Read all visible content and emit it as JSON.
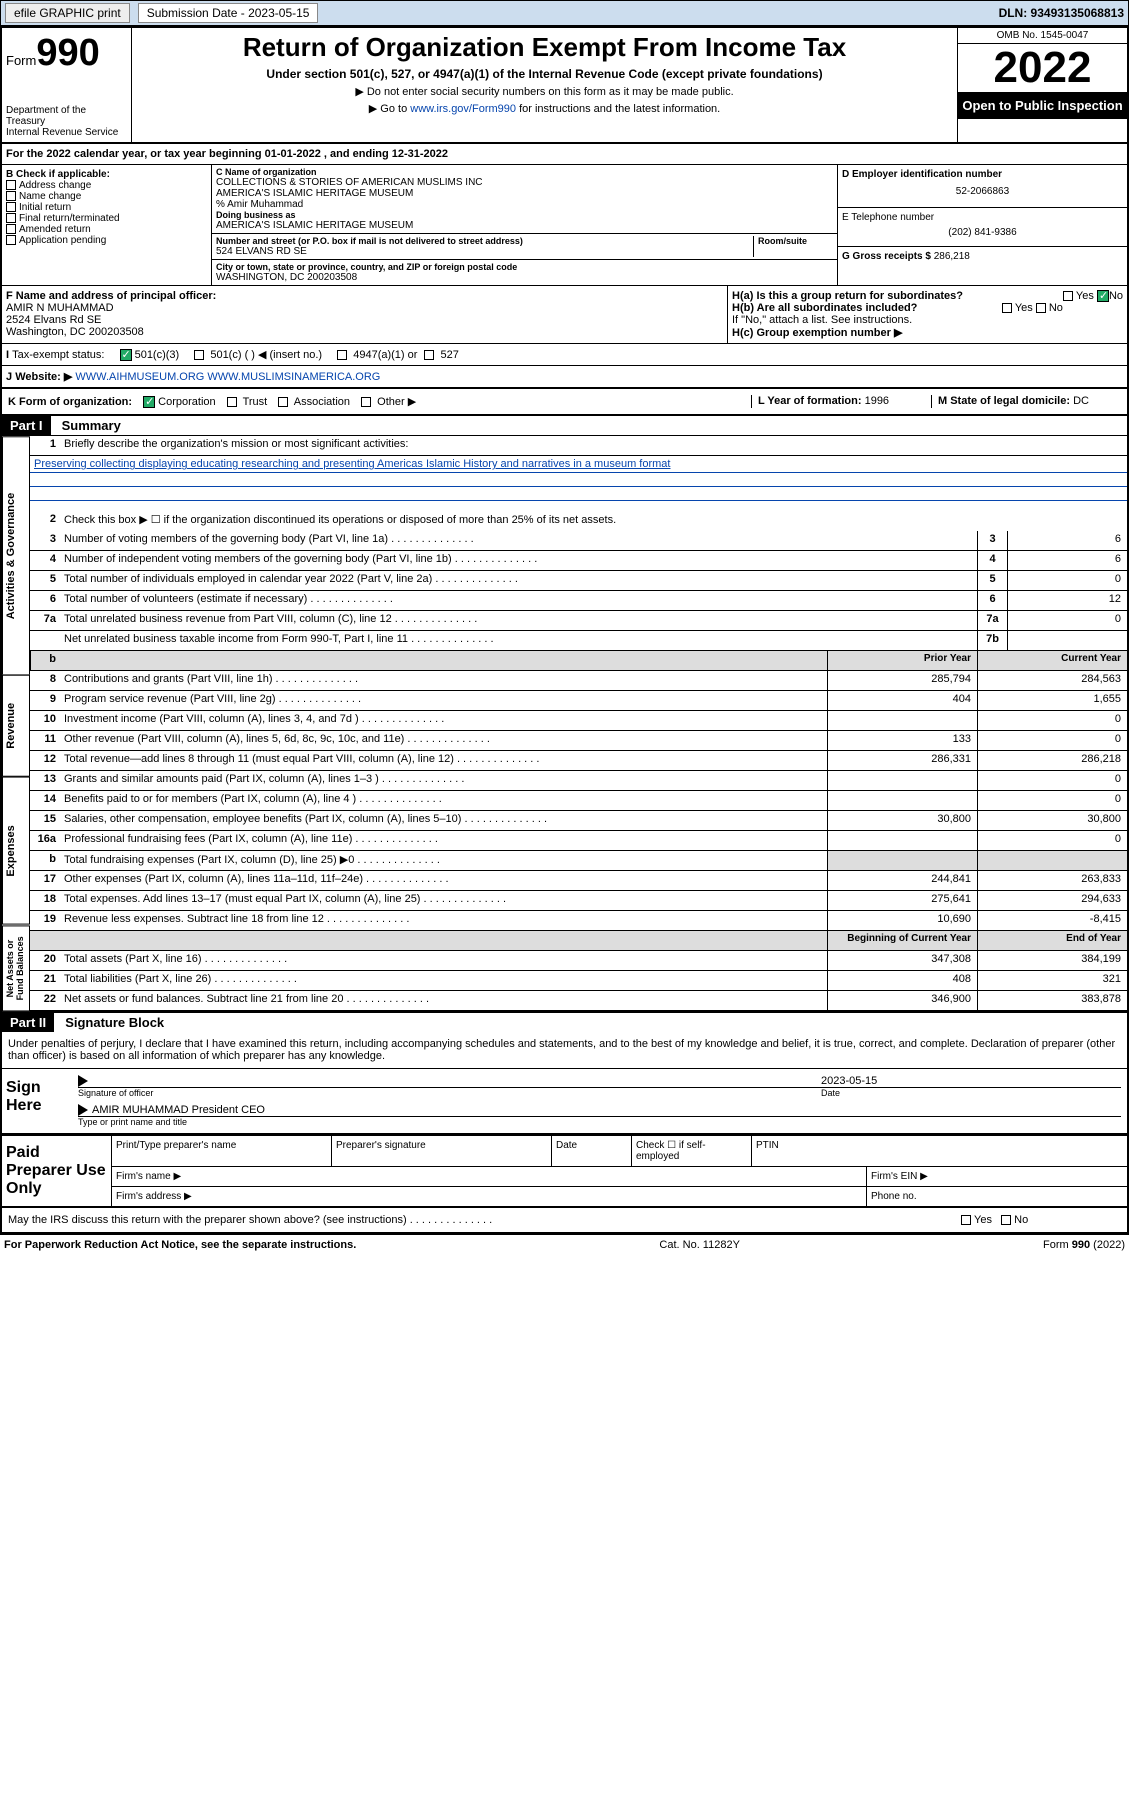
{
  "topbar": {
    "efile": "efile GRAPHIC print",
    "submission_label": "Submission Date - 2023-05-15",
    "dln": "DLN: 93493135068813"
  },
  "header": {
    "form_label": "Form",
    "form_num": "990",
    "title": "Return of Organization Exempt From Income Tax",
    "subtitle": "Under section 501(c), 527, or 4947(a)(1) of the Internal Revenue Code (except private foundations)",
    "note1": "▶ Do not enter social security numbers on this form as it may be made public.",
    "note2_pre": "▶ Go to ",
    "note2_link": "www.irs.gov/Form990",
    "note2_post": " for instructions and the latest information.",
    "dept": "Department of the Treasury\nInternal Revenue Service",
    "omb": "OMB No. 1545-0047",
    "year": "2022",
    "inspect": "Open to Public Inspection"
  },
  "line_a": "For the 2022 calendar year, or tax year beginning 01-01-2022   , and ending 12-31-2022",
  "section_b": {
    "title": "B Check if applicable:",
    "items": [
      "Address change",
      "Name change",
      "Initial return",
      "Final return/terminated",
      "Amended return",
      "Application pending"
    ]
  },
  "section_c": {
    "name_lbl": "C Name of organization",
    "name1": "COLLECTIONS & STORIES OF AMERICAN MUSLIMS INC",
    "name2": "AMERICA'S ISLAMIC HERITAGE MUSEUM",
    "care_of": "% Amir Muhammad",
    "dba_lbl": "Doing business as",
    "dba": "AMERICA'S ISLAMIC HERITAGE MUSEUM",
    "addr_lbl": "Number and street (or P.O. box if mail is not delivered to street address)",
    "room_lbl": "Room/suite",
    "addr": "524 ELVANS RD SE",
    "city_lbl": "City or town, state or province, country, and ZIP or foreign postal code",
    "city": "WASHINGTON, DC  200203508"
  },
  "section_d": {
    "lbl": "D Employer identification number",
    "val": "52-2066863"
  },
  "section_e": {
    "lbl": "E Telephone number",
    "val": "(202) 841-9386"
  },
  "section_g": {
    "lbl": "G Gross receipts $",
    "val": "286,218"
  },
  "section_f": {
    "lbl": "F  Name and address of principal officer:",
    "name": "AMIR N MUHAMMAD",
    "addr1": "2524 Elvans Rd SE",
    "addr2": "Washington, DC  200203508"
  },
  "section_h": {
    "ha": "H(a)  Is this a group return for subordinates?",
    "hb": "H(b)  Are all subordinates included?",
    "hb_note": "If \"No,\" attach a list. See instructions.",
    "hc": "H(c)  Group exemption number ▶",
    "yes": "Yes",
    "no": "No"
  },
  "line_i": {
    "lbl": "Tax-exempt status:",
    "opts": [
      "501(c)(3)",
      "501(c) (  ) ◀ (insert no.)",
      "4947(a)(1) or",
      "527"
    ]
  },
  "line_j": {
    "lbl": "Website: ▶",
    "val": "WWW.AIHMUSEUM.ORG WWW.MUSLIMSINAMERICA.ORG"
  },
  "line_k": {
    "lbl": "K Form of organization:",
    "opts": [
      "Corporation",
      "Trust",
      "Association",
      "Other ▶"
    ],
    "l_lbl": "L Year of formation:",
    "l_val": "1996",
    "m_lbl": "M State of legal domicile:",
    "m_val": "DC"
  },
  "part1": {
    "hdr": "Part I",
    "title": "Summary",
    "tab_ag": "Activities & Governance",
    "tab_rev": "Revenue",
    "tab_exp": "Expenses",
    "tab_na": "Net Assets or Fund Balances",
    "line1_lbl": "Briefly describe the organization's mission or most significant activities:",
    "mission": "Preserving collecting displaying educating researching and presenting Americas Islamic History and narratives in a museum format",
    "line2": "Check this box ▶ ☐  if the organization discontinued its operations or disposed of more than 25% of its net assets.",
    "rows_ag": [
      {
        "n": "3",
        "t": "Number of voting members of the governing body (Part VI, line 1a)",
        "box": "3",
        "val": "6"
      },
      {
        "n": "4",
        "t": "Number of independent voting members of the governing body (Part VI, line 1b)",
        "box": "4",
        "val": "6"
      },
      {
        "n": "5",
        "t": "Total number of individuals employed in calendar year 2022 (Part V, line 2a)",
        "box": "5",
        "val": "0"
      },
      {
        "n": "6",
        "t": "Total number of volunteers (estimate if necessary)",
        "box": "6",
        "val": "12"
      },
      {
        "n": "7a",
        "t": "Total unrelated business revenue from Part VIII, column (C), line 12",
        "box": "7a",
        "val": "0"
      },
      {
        "n": "",
        "t": "Net unrelated business taxable income from Form 990-T, Part I, line 11",
        "box": "7b",
        "val": ""
      }
    ],
    "col_prior": "Prior Year",
    "col_current": "Current Year",
    "rows_rev": [
      {
        "n": "8",
        "t": "Contributions and grants (Part VIII, line 1h)",
        "p": "285,794",
        "c": "284,563"
      },
      {
        "n": "9",
        "t": "Program service revenue (Part VIII, line 2g)",
        "p": "404",
        "c": "1,655"
      },
      {
        "n": "10",
        "t": "Investment income (Part VIII, column (A), lines 3, 4, and 7d )",
        "p": "",
        "c": "0"
      },
      {
        "n": "11",
        "t": "Other revenue (Part VIII, column (A), lines 5, 6d, 8c, 9c, 10c, and 11e)",
        "p": "133",
        "c": "0"
      },
      {
        "n": "12",
        "t": "Total revenue—add lines 8 through 11 (must equal Part VIII, column (A), line 12)",
        "p": "286,331",
        "c": "286,218"
      }
    ],
    "rows_exp": [
      {
        "n": "13",
        "t": "Grants and similar amounts paid (Part IX, column (A), lines 1–3 )",
        "p": "",
        "c": "0"
      },
      {
        "n": "14",
        "t": "Benefits paid to or for members (Part IX, column (A), line 4 )",
        "p": "",
        "c": "0"
      },
      {
        "n": "15",
        "t": "Salaries, other compensation, employee benefits (Part IX, column (A), lines 5–10)",
        "p": "30,800",
        "c": "30,800"
      },
      {
        "n": "16a",
        "t": "Professional fundraising fees (Part IX, column (A), line 11e)",
        "p": "",
        "c": "0"
      },
      {
        "n": "b",
        "t": "Total fundraising expenses (Part IX, column (D), line 25) ▶0",
        "p": "",
        "c": "",
        "shade": true
      },
      {
        "n": "17",
        "t": "Other expenses (Part IX, column (A), lines 11a–11d, 11f–24e)",
        "p": "244,841",
        "c": "263,833"
      },
      {
        "n": "18",
        "t": "Total expenses. Add lines 13–17 (must equal Part IX, column (A), line 25)",
        "p": "275,641",
        "c": "294,633"
      },
      {
        "n": "19",
        "t": "Revenue less expenses. Subtract line 18 from line 12",
        "p": "10,690",
        "c": "-8,415"
      }
    ],
    "col_beg": "Beginning of Current Year",
    "col_end": "End of Year",
    "rows_na": [
      {
        "n": "20",
        "t": "Total assets (Part X, line 16)",
        "p": "347,308",
        "c": "384,199"
      },
      {
        "n": "21",
        "t": "Total liabilities (Part X, line 26)",
        "p": "408",
        "c": "321"
      },
      {
        "n": "22",
        "t": "Net assets or fund balances. Subtract line 21 from line 20",
        "p": "346,900",
        "c": "383,878"
      }
    ]
  },
  "part2": {
    "hdr": "Part II",
    "title": "Signature Block",
    "perjury": "Under penalties of perjury, I declare that I have examined this return, including accompanying schedules and statements, and to the best of my knowledge and belief, it is true, correct, and complete. Declaration of preparer (other than officer) is based on all information of which preparer has any knowledge.",
    "sign_here": "Sign Here",
    "sig_officer": "Signature of officer",
    "sig_date_lbl": "Date",
    "sig_date": "2023-05-15",
    "officer_name": "AMIR MUHAMMAD  President CEO",
    "type_name": "Type or print name and title",
    "paid": "Paid Preparer Use Only",
    "pp_name": "Print/Type preparer's name",
    "pp_sig": "Preparer's signature",
    "pp_date": "Date",
    "pp_check": "Check ☐ if self-employed",
    "ptin": "PTIN",
    "firm_name": "Firm's name  ▶",
    "firm_ein": "Firm's EIN ▶",
    "firm_addr": "Firm's address ▶",
    "phone": "Phone no.",
    "discuss": "May the IRS discuss this return with the preparer shown above? (see instructions)",
    "paperwork": "For Paperwork Reduction Act Notice, see the separate instructions.",
    "cat": "Cat. No. 11282Y",
    "form_foot": "Form 990 (2022)"
  }
}
